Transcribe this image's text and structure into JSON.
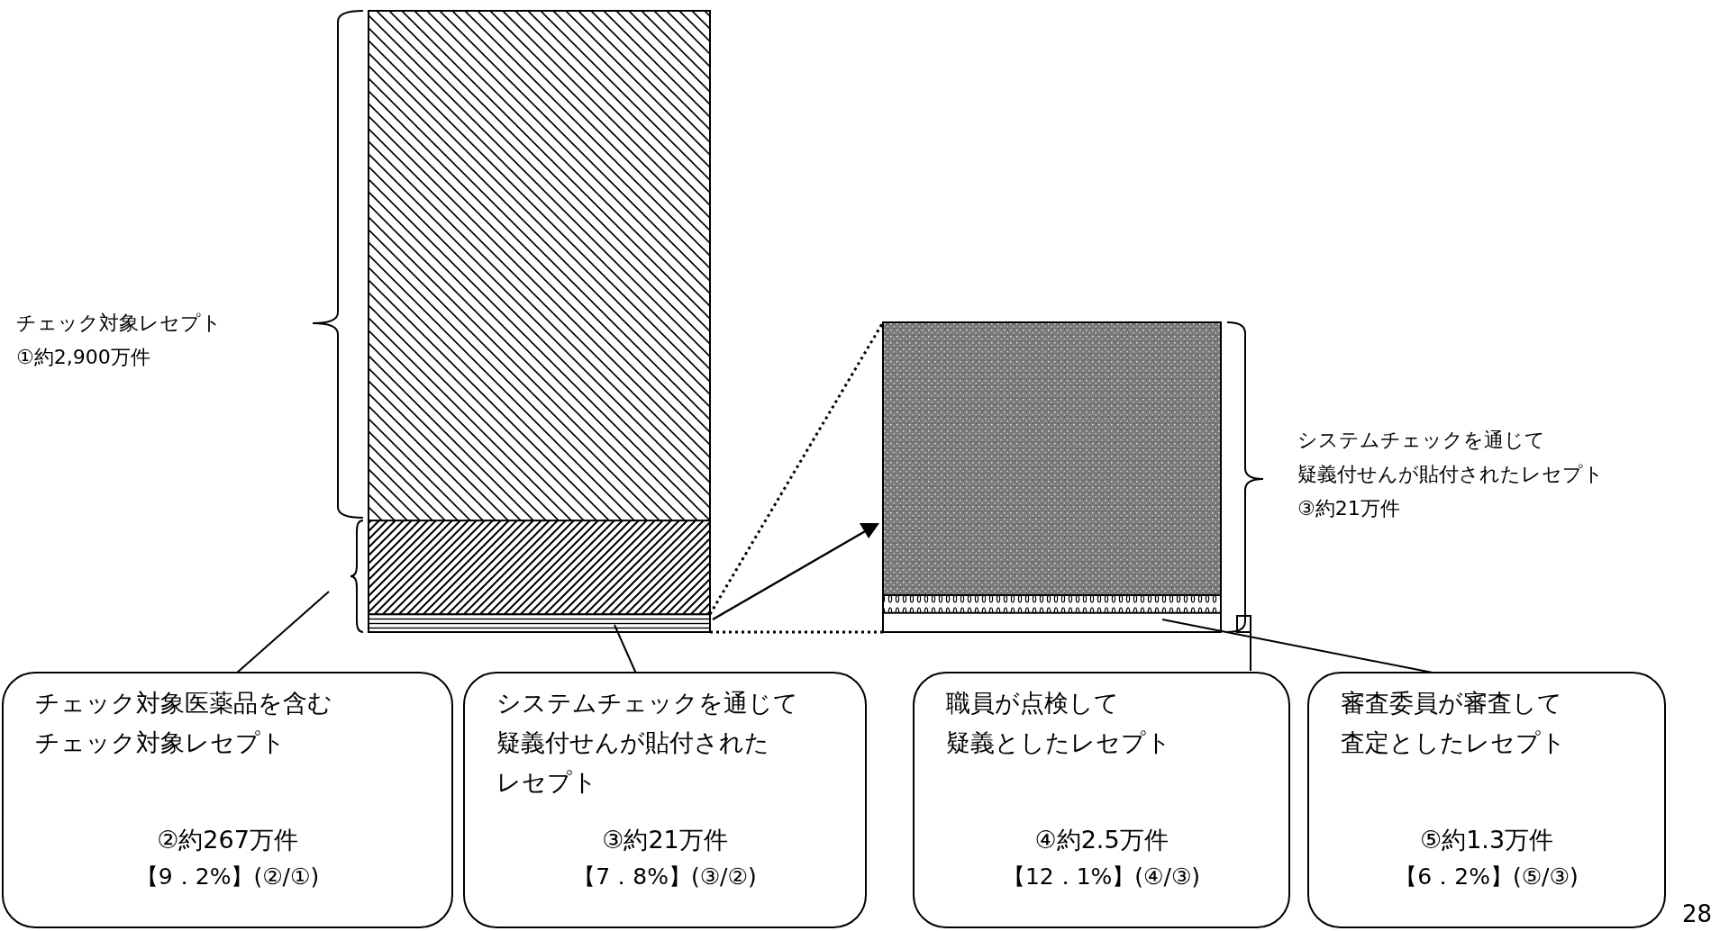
{
  "chart_data": {
    "type": "other",
    "categories": [
      "チェック対象レセプト",
      "チェック対象医薬品を含むチェック対象レセプト",
      "システムチェックを通じて疑義付せんが貼付されたレセプト",
      "職員が点検して疑義としたレセプト",
      "審査委員が審査して査定としたレセプト"
    ],
    "values": [
      2900,
      267,
      21,
      2.5,
      1.3
    ],
    "value_labels": [
      "①約2,900万件",
      "②約267万件",
      "③約21万件",
      "④約2.5万件",
      "⑤約1.3万件"
    ],
    "annotations": [
      "【9．2%】(②/①)",
      "【7．8%】(③/②)",
      "【12．1%】(④/③)",
      "【6．2%】(⑤/③)",
      "システムチェックを通じて疑義付せんが貼付されたレセプト",
      "28"
    ]
  }
}
